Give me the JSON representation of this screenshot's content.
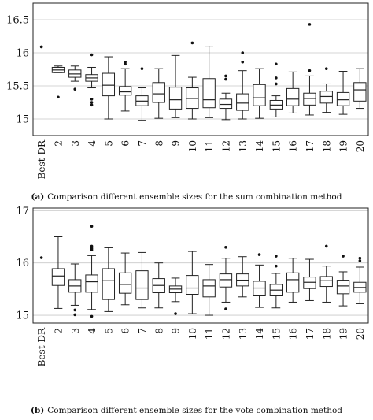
{
  "chart_data": [
    {
      "type": "box",
      "caption_tag": "(a)",
      "caption": "Comparison different ensemble sizes for the sum combination method",
      "categories": [
        "Best DR",
        "2",
        "3",
        "4",
        "5",
        "6",
        "7",
        "8",
        "9",
        "10",
        "11",
        "12",
        "13",
        "14",
        "15",
        "16",
        "17",
        "18",
        "19",
        "20"
      ],
      "ylim": [
        14.75,
        16.75
      ],
      "yticks": [
        "15",
        "15.5",
        "16",
        "16.5"
      ],
      "ytick_values": [
        15,
        15.5,
        16,
        16.5
      ],
      "grid": true,
      "boxes": [
        {
          "min": 16.09,
          "q1": 16.09,
          "median": 16.09,
          "q3": 16.09,
          "max": 16.09,
          "outliers": [
            16.09
          ],
          "point_only": true
        },
        {
          "min": 15.7,
          "q1": 15.7,
          "median": 15.74,
          "q3": 15.78,
          "max": 15.8,
          "outliers": [
            15.33
          ]
        },
        {
          "min": 15.57,
          "q1": 15.63,
          "median": 15.68,
          "q3": 15.74,
          "max": 15.8,
          "outliers": [
            15.45
          ]
        },
        {
          "min": 15.47,
          "q1": 15.57,
          "median": 15.62,
          "q3": 15.67,
          "max": 15.78,
          "outliers": [
            15.97,
            15.3,
            15.25,
            15.21
          ]
        },
        {
          "min": 15.0,
          "q1": 15.35,
          "median": 15.51,
          "q3": 15.69,
          "max": 15.94,
          "outliers": []
        },
        {
          "min": 15.12,
          "q1": 15.36,
          "median": 15.41,
          "q3": 15.49,
          "max": 15.76,
          "outliers": [
            15.86,
            15.83
          ]
        },
        {
          "min": 14.98,
          "q1": 15.2,
          "median": 15.27,
          "q3": 15.35,
          "max": 15.47,
          "outliers": [
            15.76
          ]
        },
        {
          "min": 15.01,
          "q1": 15.25,
          "median": 15.38,
          "q3": 15.55,
          "max": 15.76,
          "outliers": []
        },
        {
          "min": 15.02,
          "q1": 15.15,
          "median": 15.29,
          "q3": 15.48,
          "max": 15.96,
          "outliers": []
        },
        {
          "min": 15.0,
          "q1": 15.16,
          "median": 15.31,
          "q3": 15.47,
          "max": 15.63,
          "outliers": [
            16.15
          ]
        },
        {
          "min": 15.02,
          "q1": 15.17,
          "median": 15.29,
          "q3": 15.61,
          "max": 16.1,
          "outliers": []
        },
        {
          "min": 14.99,
          "q1": 15.16,
          "median": 15.22,
          "q3": 15.3,
          "max": 15.39,
          "outliers": [
            15.65,
            15.6
          ]
        },
        {
          "min": 15.0,
          "q1": 15.13,
          "median": 15.24,
          "q3": 15.38,
          "max": 15.73,
          "outliers": [
            16.0,
            15.86
          ]
        },
        {
          "min": 15.01,
          "q1": 15.2,
          "median": 15.32,
          "q3": 15.52,
          "max": 15.76,
          "outliers": []
        },
        {
          "min": 15.03,
          "q1": 15.15,
          "median": 15.21,
          "q3": 15.28,
          "max": 15.35,
          "outliers": [
            15.83,
            15.62,
            15.53
          ]
        },
        {
          "min": 15.09,
          "q1": 15.2,
          "median": 15.3,
          "q3": 15.46,
          "max": 15.71,
          "outliers": []
        },
        {
          "min": 15.06,
          "q1": 15.21,
          "median": 15.31,
          "q3": 15.39,
          "max": 15.65,
          "outliers": [
            16.43,
            15.73
          ]
        },
        {
          "min": 15.1,
          "q1": 15.24,
          "median": 15.34,
          "q3": 15.42,
          "max": 15.53,
          "outliers": [
            15.76
          ]
        },
        {
          "min": 15.07,
          "q1": 15.2,
          "median": 15.29,
          "q3": 15.4,
          "max": 15.72,
          "outliers": []
        },
        {
          "min": 15.16,
          "q1": 15.27,
          "median": 15.44,
          "q3": 15.55,
          "max": 15.76,
          "outliers": []
        }
      ]
    },
    {
      "type": "box",
      "caption_tag": "(b)",
      "caption": "Comparison different ensemble sizes for the vote combination method",
      "categories": [
        "Best DR",
        "2",
        "3",
        "4",
        "5",
        "6",
        "7",
        "8",
        "9",
        "10",
        "11",
        "12",
        "13",
        "14",
        "15",
        "16",
        "17",
        "18",
        "19",
        "20"
      ],
      "ylim": [
        14.85,
        17.05
      ],
      "yticks": [
        "15",
        "16",
        "17"
      ],
      "ytick_values": [
        15,
        16,
        17
      ],
      "grid": true,
      "boxes": [
        {
          "min": 16.1,
          "q1": 16.1,
          "median": 16.1,
          "q3": 16.1,
          "max": 16.1,
          "outliers": [
            16.1
          ],
          "point_only": true
        },
        {
          "min": 15.13,
          "q1": 15.57,
          "median": 15.75,
          "q3": 15.89,
          "max": 16.5,
          "outliers": []
        },
        {
          "min": 15.19,
          "q1": 15.44,
          "median": 15.56,
          "q3": 15.68,
          "max": 15.98,
          "outliers": [
            15.1,
            15.01
          ]
        },
        {
          "min": 15.11,
          "q1": 15.44,
          "median": 15.64,
          "q3": 15.77,
          "max": 16.14,
          "outliers": [
            16.7,
            16.32,
            16.28,
            16.25,
            14.98
          ]
        },
        {
          "min": 15.07,
          "q1": 15.3,
          "median": 15.66,
          "q3": 15.89,
          "max": 16.29,
          "outliers": []
        },
        {
          "min": 15.2,
          "q1": 15.42,
          "median": 15.59,
          "q3": 15.81,
          "max": 16.19,
          "outliers": []
        },
        {
          "min": 15.14,
          "q1": 15.3,
          "median": 15.52,
          "q3": 15.85,
          "max": 16.2,
          "outliers": []
        },
        {
          "min": 15.14,
          "q1": 15.43,
          "median": 15.57,
          "q3": 15.7,
          "max": 16.0,
          "outliers": []
        },
        {
          "min": 15.26,
          "q1": 15.43,
          "median": 15.5,
          "q3": 15.56,
          "max": 15.71,
          "outliers": [
            15.03
          ]
        },
        {
          "min": 15.03,
          "q1": 15.4,
          "median": 15.52,
          "q3": 15.76,
          "max": 16.22,
          "outliers": []
        },
        {
          "min": 15.0,
          "q1": 15.35,
          "median": 15.56,
          "q3": 15.68,
          "max": 15.97,
          "outliers": []
        },
        {
          "min": 15.25,
          "q1": 15.54,
          "median": 15.68,
          "q3": 15.79,
          "max": 16.09,
          "outliers": [
            16.3,
            15.12
          ]
        },
        {
          "min": 15.35,
          "q1": 15.56,
          "median": 15.67,
          "q3": 15.79,
          "max": 16.12,
          "outliers": []
        },
        {
          "min": 15.15,
          "q1": 15.37,
          "median": 15.52,
          "q3": 15.65,
          "max": 15.96,
          "outliers": [
            16.16
          ]
        },
        {
          "min": 15.14,
          "q1": 15.37,
          "median": 15.48,
          "q3": 15.59,
          "max": 15.8,
          "outliers": [
            16.13,
            15.94
          ]
        },
        {
          "min": 15.25,
          "q1": 15.44,
          "median": 15.68,
          "q3": 15.81,
          "max": 16.09,
          "outliers": []
        },
        {
          "min": 15.28,
          "q1": 15.51,
          "median": 15.63,
          "q3": 15.73,
          "max": 16.07,
          "outliers": []
        },
        {
          "min": 15.25,
          "q1": 15.55,
          "median": 15.66,
          "q3": 15.74,
          "max": 15.94,
          "outliers": [
            16.32
          ]
        },
        {
          "min": 15.18,
          "q1": 15.41,
          "median": 15.56,
          "q3": 15.67,
          "max": 15.83,
          "outliers": [
            16.13
          ]
        },
        {
          "min": 15.22,
          "q1": 15.44,
          "median": 15.53,
          "q3": 15.63,
          "max": 15.92,
          "outliers": [
            16.09,
            16.04
          ]
        }
      ]
    }
  ]
}
